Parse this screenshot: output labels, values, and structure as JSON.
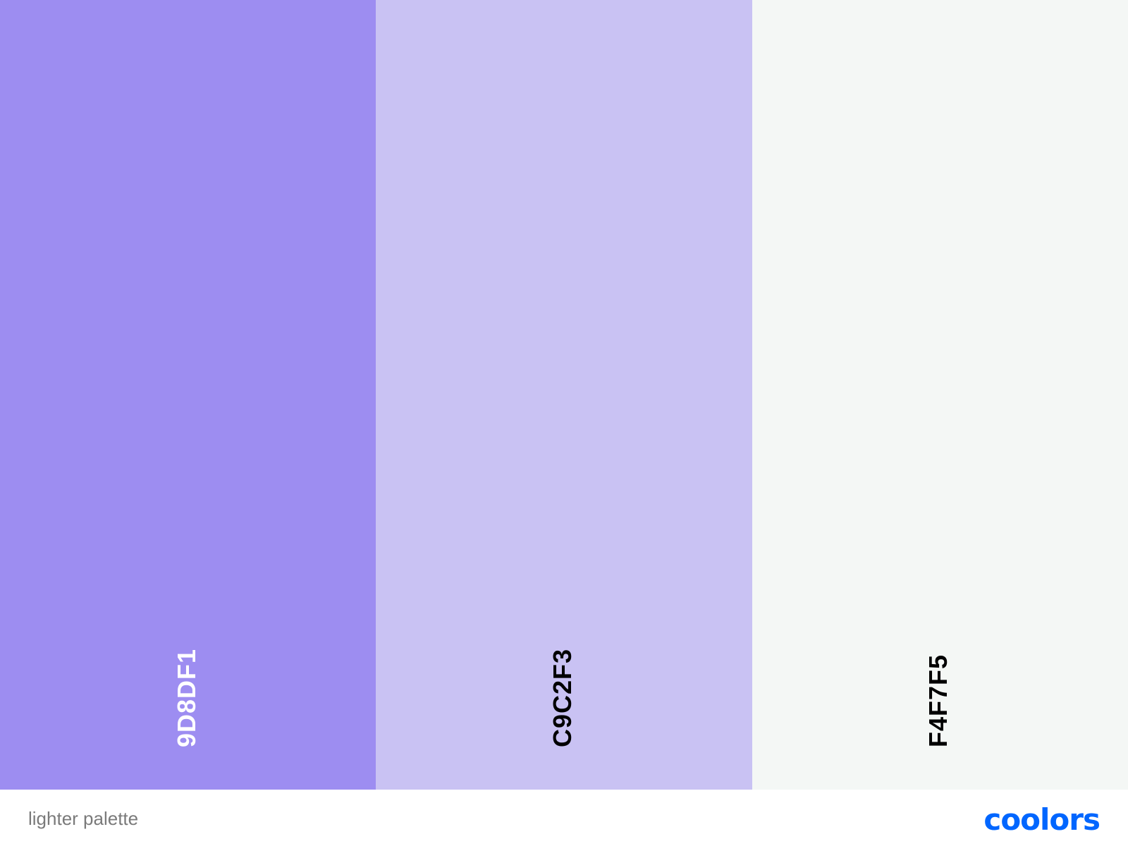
{
  "palette": {
    "swatches": [
      {
        "code": "9D8DF1",
        "color": "#9D8DF1",
        "text_color": "#ffffff"
      },
      {
        "code": "C9C2F3",
        "color": "#C9C2F3",
        "text_color": "#000000"
      },
      {
        "code": "F4F7F5",
        "color": "#F4F7F5",
        "text_color": "#000000"
      }
    ]
  },
  "footer": {
    "palette_name": "lighter palette",
    "brand": "coolors",
    "brand_color": "#0066ff"
  }
}
